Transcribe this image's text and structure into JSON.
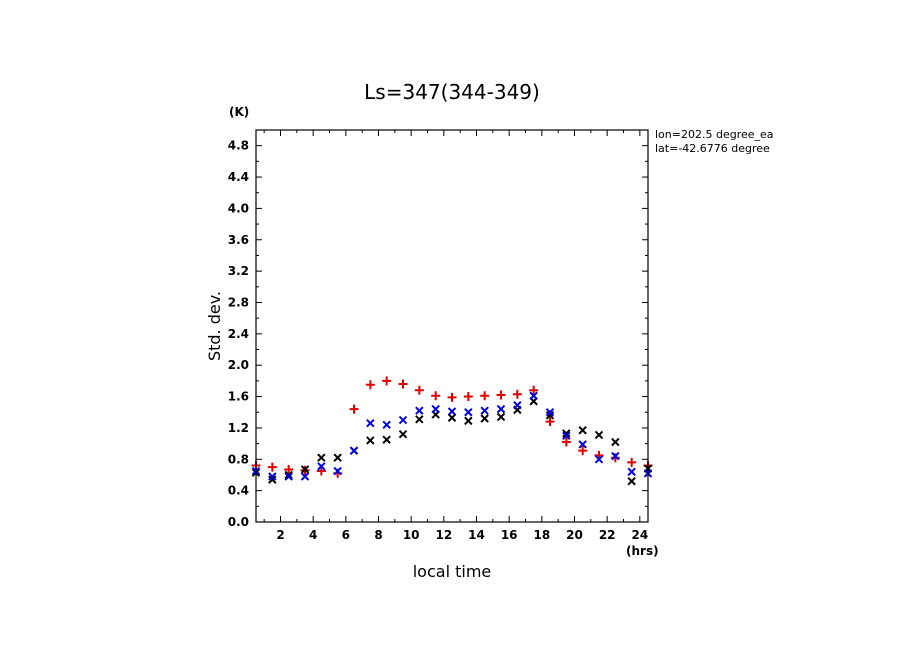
{
  "chart_data": {
    "type": "scatter",
    "title": "Ls=347(344-349)",
    "xlabel": "local time",
    "ylabel": "Std. dev.",
    "x_unit": "(hrs)",
    "y_unit": "(K)",
    "info_lines": [
      "lon=202.5 degree_ea",
      "lat=-42.6776 degree"
    ],
    "xlim": [
      0.5,
      24.5
    ],
    "ylim": [
      0,
      5.0
    ],
    "xticks": [
      "2",
      "4",
      "6",
      "8",
      "10",
      "12",
      "14",
      "16",
      "18",
      "20",
      "22",
      "24"
    ],
    "yticks": [
      "0.0",
      "0.4",
      "0.8",
      "1.2",
      "1.6",
      "2.0",
      "2.4",
      "2.8",
      "3.2",
      "3.6",
      "4.0",
      "4.4",
      "4.8"
    ],
    "x": [
      0.5,
      1.5,
      2.5,
      3.5,
      4.5,
      5.5,
      6.5,
      7.5,
      8.5,
      9.5,
      10.5,
      11.5,
      12.5,
      13.5,
      14.5,
      15.5,
      16.5,
      17.5,
      18.5,
      19.5,
      20.5,
      21.5,
      22.5,
      23.5,
      24.5
    ],
    "series": [
      {
        "color": "#e00000",
        "marker": "plus",
        "values": [
          0.72,
          0.7,
          0.67,
          0.66,
          0.65,
          0.62,
          1.44,
          1.75,
          1.8,
          1.76,
          1.68,
          1.61,
          1.59,
          1.6,
          1.61,
          1.62,
          1.63,
          1.68,
          1.28,
          1.02,
          0.91,
          0.85,
          0.82,
          0.76,
          0.72
        ]
      },
      {
        "color": "#000000",
        "marker": "x",
        "values": [
          0.63,
          0.54,
          0.6,
          0.67,
          0.82,
          0.82,
          0.91,
          1.04,
          1.05,
          1.12,
          1.31,
          1.37,
          1.33,
          1.29,
          1.32,
          1.34,
          1.43,
          1.54,
          1.36,
          1.13,
          1.17,
          1.11,
          1.02,
          0.52,
          0.68
        ]
      },
      {
        "color": "#0000e0",
        "marker": "x",
        "values": [
          0.65,
          0.58,
          0.58,
          0.58,
          0.71,
          0.65,
          0.91,
          1.26,
          1.24,
          1.3,
          1.42,
          1.44,
          1.41,
          1.4,
          1.42,
          1.44,
          1.49,
          1.61,
          1.4,
          1.1,
          0.99,
          0.8,
          0.84,
          0.64,
          0.62
        ]
      }
    ]
  }
}
